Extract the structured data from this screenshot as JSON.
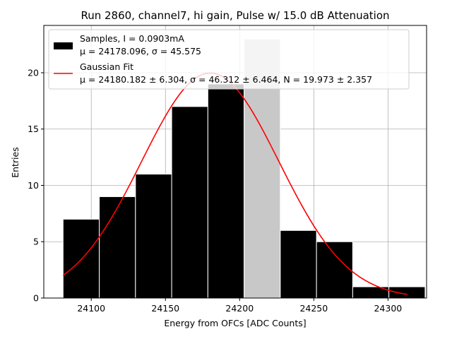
{
  "chart_data": {
    "type": "bar",
    "title": "Run 2860, channel7, hi gain, Pulse w/ 15.0 dB Attenuation",
    "xlabel": "Energy from OFCs [ADC Counts]",
    "ylabel": "Entries",
    "xlim": [
      24068,
      24326
    ],
    "ylim": [
      0,
      24.2
    ],
    "xticks": [
      24100,
      24150,
      24200,
      24250,
      24300
    ],
    "yticks": [
      0,
      5,
      10,
      15,
      20
    ],
    "grid": true,
    "legend_position": "top-left",
    "histogram": {
      "name": "Samples, I = 0.0903mA",
      "stats_label": "μ = 24178.096, σ = 45.575",
      "color": "#000000",
      "highlight_color": "#c8c8c8",
      "bin_edges": [
        24081,
        24105.4,
        24129.8,
        24154.2,
        24178.6,
        24203,
        24227.4,
        24251.8,
        24276.2,
        24300.6,
        24325
      ],
      "counts": [
        7,
        9,
        11,
        17,
        19,
        23,
        6,
        5,
        1,
        1
      ]
    },
    "fit": {
      "name": "Gaussian Fit",
      "params_label": "μ = 24180.182 ± 6.304, σ = 46.312 ± 6.464, N = 19.973 ± 2.357",
      "color": "#ff0000",
      "mu": 24180.182,
      "sigma": 46.312,
      "N": 19.973,
      "x_range": [
        24081,
        24313
      ]
    }
  }
}
